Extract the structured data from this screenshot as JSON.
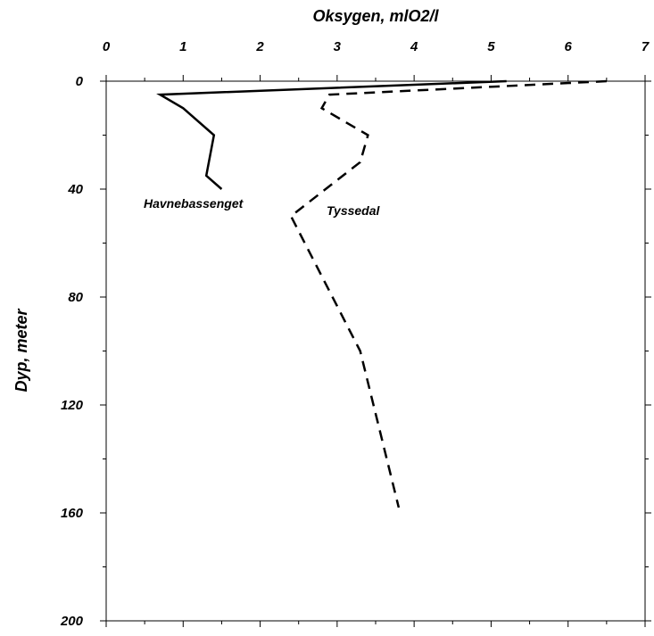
{
  "chart_data": {
    "type": "line",
    "xlabel": "Oksygen, mlO2/l",
    "ylabel": "Dyp, meter",
    "xlim": [
      0,
      7
    ],
    "ylim": [
      0,
      200
    ],
    "y_inverted": true,
    "x_axis_position": "top",
    "x_ticks": [
      0,
      1,
      2,
      3,
      4,
      5,
      6,
      7
    ],
    "y_ticks": [
      0,
      40,
      80,
      120,
      160,
      200
    ],
    "grid": false,
    "series": [
      {
        "name": "Havnebassenget",
        "style": "solid",
        "color": "#000000",
        "points": [
          [
            5.2,
            0
          ],
          [
            0.7,
            5
          ],
          [
            1.0,
            10
          ],
          [
            1.4,
            20
          ],
          [
            1.3,
            35
          ],
          [
            1.5,
            40
          ]
        ]
      },
      {
        "name": "Tyssedal",
        "style": "dashed",
        "color": "#000000",
        "points": [
          [
            6.5,
            0
          ],
          [
            2.9,
            5
          ],
          [
            2.8,
            10
          ],
          [
            3.4,
            20
          ],
          [
            3.3,
            30
          ],
          [
            2.4,
            50
          ],
          [
            3.3,
            100
          ],
          [
            3.8,
            158
          ]
        ]
      }
    ]
  }
}
